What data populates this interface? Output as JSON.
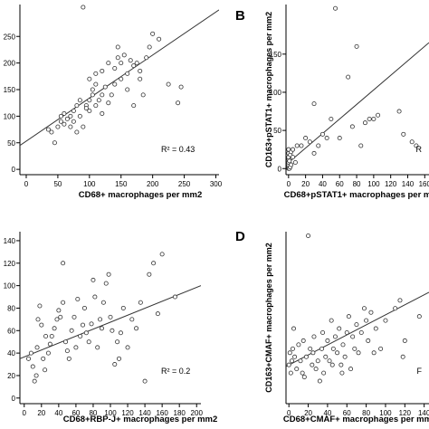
{
  "chart_data": [
    {
      "type": "scatter",
      "panel": "",
      "xlabel": "CD68+ macrophages per mm2",
      "ylabel": "",
      "x_ticks": [
        "0",
        "50",
        "100",
        "150",
        "200",
        "250",
        "300"
      ],
      "y_ticks": [
        "0",
        "50",
        "100",
        "150",
        "200",
        "250"
      ],
      "xlim": [
        -10,
        305
      ],
      "ylim": [
        -10,
        310
      ],
      "r2_label": "R² = 0.43",
      "fit": {
        "x": [
          -10,
          305
        ],
        "y": [
          45,
          300
        ]
      },
      "points": [
        [
          35,
          75
        ],
        [
          40,
          70
        ],
        [
          45,
          50
        ],
        [
          50,
          80
        ],
        [
          55,
          100
        ],
        [
          55,
          90
        ],
        [
          60,
          85
        ],
        [
          60,
          105
        ],
        [
          65,
          95
        ],
        [
          70,
          100
        ],
        [
          70,
          80
        ],
        [
          75,
          110
        ],
        [
          75,
          90
        ],
        [
          80,
          70
        ],
        [
          80,
          120
        ],
        [
          85,
          100
        ],
        [
          85,
          130
        ],
        [
          90,
          80
        ],
        [
          95,
          120
        ],
        [
          95,
          115
        ],
        [
          100,
          110
        ],
        [
          100,
          130
        ],
        [
          100,
          170
        ],
        [
          105,
          140
        ],
        [
          105,
          150
        ],
        [
          110,
          180
        ],
        [
          110,
          160
        ],
        [
          110,
          120
        ],
        [
          115,
          130
        ],
        [
          120,
          140
        ],
        [
          120,
          185
        ],
        [
          125,
          155
        ],
        [
          130,
          125
        ],
        [
          130,
          200
        ],
        [
          135,
          140
        ],
        [
          140,
          160
        ],
        [
          140,
          190
        ],
        [
          145,
          230
        ],
        [
          145,
          210
        ],
        [
          150,
          170
        ],
        [
          150,
          200
        ],
        [
          155,
          215
        ],
        [
          160,
          180
        ],
        [
          160,
          150
        ],
        [
          165,
          205
        ],
        [
          170,
          120
        ],
        [
          170,
          195
        ],
        [
          175,
          200
        ],
        [
          180,
          170
        ],
        [
          185,
          140
        ],
        [
          190,
          210
        ],
        [
          195,
          230
        ],
        [
          200,
          255
        ],
        [
          210,
          245
        ],
        [
          225,
          160
        ],
        [
          240,
          125
        ],
        [
          245,
          155
        ],
        [
          90,
          305
        ],
        [
          180,
          185
        ],
        [
          120,
          105
        ]
      ]
    },
    {
      "type": "scatter",
      "panel": "B",
      "xlabel": "CD68+pSTAT1+ macrophages per m",
      "ylabel": "CD163+pSTAT1+ macrophages per mm2",
      "x_ticks": [
        "0",
        "20",
        "40",
        "60",
        "80",
        "100",
        "120",
        "140",
        "160"
      ],
      "y_ticks": [
        "0",
        "50",
        "100",
        "150"
      ],
      "xlim": [
        -3,
        165
      ],
      "ylim": [
        -8,
        215
      ],
      "r2_label": "R",
      "fit": {
        "x": [
          -3,
          165
        ],
        "y": [
          5,
          165
        ]
      },
      "points": [
        [
          0,
          0
        ],
        [
          0,
          3
        ],
        [
          0,
          5
        ],
        [
          0,
          8
        ],
        [
          0,
          12
        ],
        [
          0,
          15
        ],
        [
          0,
          20
        ],
        [
          0,
          25
        ],
        [
          1,
          0
        ],
        [
          1,
          10
        ],
        [
          2,
          2
        ],
        [
          2,
          18
        ],
        [
          3,
          5
        ],
        [
          3,
          22
        ],
        [
          5,
          25
        ],
        [
          5,
          15
        ],
        [
          8,
          8
        ],
        [
          10,
          30
        ],
        [
          15,
          30
        ],
        [
          20,
          40
        ],
        [
          25,
          35
        ],
        [
          30,
          20
        ],
        [
          35,
          30
        ],
        [
          40,
          45
        ],
        [
          45,
          40
        ],
        [
          50,
          65
        ],
        [
          55,
          210
        ],
        [
          60,
          40
        ],
        [
          70,
          120
        ],
        [
          75,
          55
        ],
        [
          80,
          160
        ],
        [
          85,
          30
        ],
        [
          90,
          60
        ],
        [
          95,
          65
        ],
        [
          100,
          65
        ],
        [
          105,
          70
        ],
        [
          130,
          75
        ],
        [
          135,
          45
        ],
        [
          145,
          35
        ],
        [
          150,
          30
        ],
        [
          30,
          85
        ]
      ]
    },
    {
      "type": "scatter",
      "panel": "",
      "xlabel": "CD68+RBP-J+ macrophages per mm2",
      "ylabel": "",
      "x_ticks": [
        "0",
        "20",
        "40",
        "60",
        "80",
        "100",
        "120",
        "140",
        "160",
        "180",
        "200"
      ],
      "y_ticks": [
        "0",
        "20",
        "40",
        "60",
        "80",
        "100",
        "120",
        "140"
      ],
      "xlim": [
        -5,
        205
      ],
      "ylim": [
        -5,
        148
      ],
      "r2_label": "R² = 0.2",
      "fit": {
        "x": [
          -5,
          205
        ],
        "y": [
          35,
          100
        ]
      },
      "points": [
        [
          5,
          35
        ],
        [
          8,
          40
        ],
        [
          10,
          28
        ],
        [
          12,
          15
        ],
        [
          14,
          20
        ],
        [
          15,
          45
        ],
        [
          16,
          70
        ],
        [
          18,
          82
        ],
        [
          20,
          65
        ],
        [
          22,
          35
        ],
        [
          24,
          25
        ],
        [
          25,
          55
        ],
        [
          28,
          40
        ],
        [
          30,
          48
        ],
        [
          32,
          55
        ],
        [
          35,
          62
        ],
        [
          38,
          70
        ],
        [
          40,
          78
        ],
        [
          42,
          72
        ],
        [
          45,
          85
        ],
        [
          48,
          50
        ],
        [
          50,
          42
        ],
        [
          52,
          35
        ],
        [
          55,
          60
        ],
        [
          58,
          72
        ],
        [
          60,
          45
        ],
        [
          62,
          88
        ],
        [
          65,
          55
        ],
        [
          68,
          65
        ],
        [
          70,
          80
        ],
        [
          72,
          58
        ],
        [
          75,
          50
        ],
        [
          78,
          66
        ],
        [
          80,
          105
        ],
        [
          82,
          90
        ],
        [
          85,
          45
        ],
        [
          88,
          70
        ],
        [
          90,
          62
        ],
        [
          92,
          85
        ],
        [
          95,
          102
        ],
        [
          98,
          110
        ],
        [
          100,
          72
        ],
        [
          102,
          60
        ],
        [
          105,
          30
        ],
        [
          108,
          50
        ],
        [
          110,
          35
        ],
        [
          112,
          58
        ],
        [
          115,
          80
        ],
        [
          120,
          45
        ],
        [
          125,
          70
        ],
        [
          130,
          62
        ],
        [
          135,
          85
        ],
        [
          140,
          15
        ],
        [
          145,
          110
        ],
        [
          150,
          120
        ],
        [
          155,
          75
        ],
        [
          160,
          128
        ],
        [
          175,
          90
        ],
        [
          45,
          120
        ]
      ]
    },
    {
      "type": "scatter",
      "panel": "D",
      "xlabel": "CD68+CMAF+ macrophages per mm",
      "ylabel": "CD163+CMAF+ macrophages per mm2",
      "x_ticks": [
        "0",
        "20",
        "40",
        "60",
        "80",
        "100",
        "120",
        "140"
      ],
      "y_ticks": [],
      "xlim": [
        -3,
        145
      ],
      "ylim": [
        -8,
        205
      ],
      "r2_label": "F",
      "fit": {
        "x": [
          -3,
          145
        ],
        "y": [
          38,
          130
        ]
      },
      "points": [
        [
          0,
          40
        ],
        [
          1,
          55
        ],
        [
          2,
          30
        ],
        [
          3,
          45
        ],
        [
          4,
          60
        ],
        [
          5,
          85
        ],
        [
          6,
          50
        ],
        [
          8,
          35
        ],
        [
          10,
          65
        ],
        [
          12,
          45
        ],
        [
          14,
          30
        ],
        [
          15,
          70
        ],
        [
          16,
          25
        ],
        [
          18,
          50
        ],
        [
          20,
          200
        ],
        [
          22,
          60
        ],
        [
          24,
          40
        ],
        [
          25,
          55
        ],
        [
          26,
          75
        ],
        [
          28,
          35
        ],
        [
          30,
          45
        ],
        [
          32,
          20
        ],
        [
          34,
          60
        ],
        [
          35,
          80
        ],
        [
          36,
          30
        ],
        [
          38,
          50
        ],
        [
          40,
          70
        ],
        [
          42,
          45
        ],
        [
          44,
          95
        ],
        [
          45,
          40
        ],
        [
          46,
          60
        ],
        [
          48,
          75
        ],
        [
          50,
          55
        ],
        [
          52,
          85
        ],
        [
          54,
          40
        ],
        [
          55,
          30
        ],
        [
          56,
          65
        ],
        [
          58,
          50
        ],
        [
          60,
          80
        ],
        [
          62,
          100
        ],
        [
          64,
          35
        ],
        [
          66,
          75
        ],
        [
          68,
          60
        ],
        [
          70,
          90
        ],
        [
          72,
          55
        ],
        [
          75,
          80
        ],
        [
          78,
          110
        ],
        [
          80,
          95
        ],
        [
          82,
          70
        ],
        [
          85,
          105
        ],
        [
          88,
          55
        ],
        [
          90,
          85
        ],
        [
          95,
          60
        ],
        [
          100,
          95
        ],
        [
          110,
          110
        ],
        [
          115,
          120
        ],
        [
          118,
          50
        ],
        [
          120,
          70
        ],
        [
          135,
          100
        ]
      ]
    }
  ]
}
